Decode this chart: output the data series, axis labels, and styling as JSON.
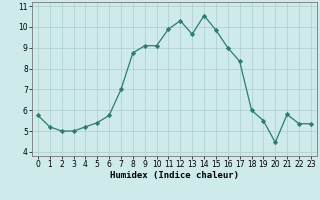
{
  "x": [
    0,
    1,
    2,
    3,
    4,
    5,
    6,
    7,
    8,
    9,
    10,
    11,
    12,
    13,
    14,
    15,
    16,
    17,
    18,
    19,
    20,
    21,
    22,
    23
  ],
  "y": [
    5.75,
    5.2,
    5.0,
    5.0,
    5.2,
    5.4,
    5.75,
    7.0,
    8.75,
    9.1,
    9.1,
    9.9,
    10.3,
    9.65,
    10.55,
    9.85,
    9.0,
    8.35,
    6.0,
    5.5,
    4.45,
    5.8,
    5.35,
    5.35
  ],
  "xlim": [
    -0.5,
    23.5
  ],
  "ylim": [
    3.8,
    11.2
  ],
  "yticks": [
    4,
    5,
    6,
    7,
    8,
    9,
    10,
    11
  ],
  "xticks": [
    0,
    1,
    2,
    3,
    4,
    5,
    6,
    7,
    8,
    9,
    10,
    11,
    12,
    13,
    14,
    15,
    16,
    17,
    18,
    19,
    20,
    21,
    22,
    23
  ],
  "xlabel": "Humidex (Indice chaleur)",
  "line_color": "#2d7d6d",
  "marker": "D",
  "marker_size": 2.2,
  "bg_color": "#ceeaea",
  "grid_color": "#aecece",
  "tick_fontsize": 5.5,
  "xlabel_fontsize": 6.5
}
